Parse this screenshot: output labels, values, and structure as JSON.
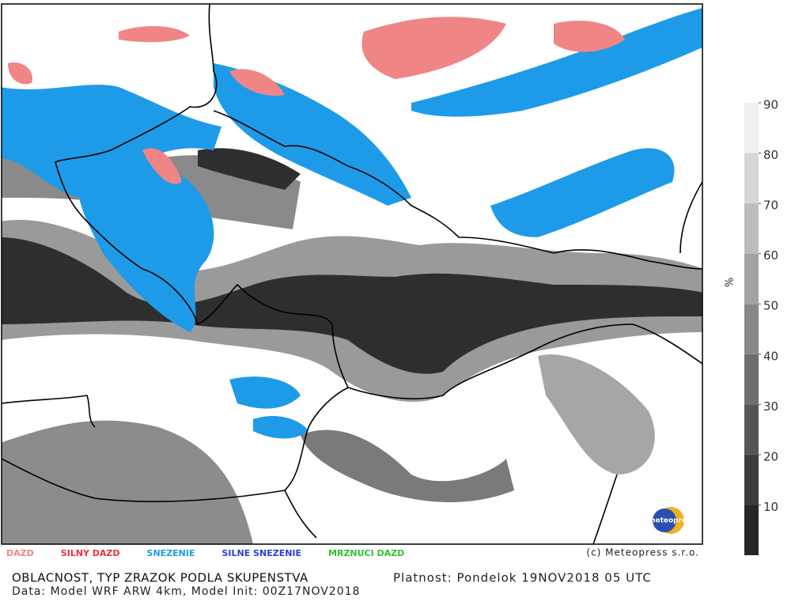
{
  "legend": [
    {
      "label": "DAZD",
      "color": "#f08585"
    },
    {
      "label": "SILNY DAZD",
      "color": "#e8323c"
    },
    {
      "label": "SNEZENIE",
      "color": "#1e9be8"
    },
    {
      "label": "SILNE SNEZENIE",
      "color": "#2a3fd0"
    },
    {
      "label": "MRZNUCI DAZD",
      "color": "#2fc12f"
    }
  ],
  "copyright": "(c) Meteopress s.r.o.",
  "logo": "meteopress",
  "title": "OBLACNOST, TYP ZRAZOK PODLA SKUPENSTVA",
  "validity": "Platnost: Pondelok 19NOV2018 05 UTC",
  "source": "Data: Model WRF ARW 4km, Model Init: 00Z17NOV2018",
  "colorbar": {
    "unit": "%",
    "lim": [
      0,
      90
    ],
    "ticks": [
      10,
      20,
      30,
      40,
      50,
      60,
      70,
      80,
      90
    ],
    "colors": [
      "#262626",
      "#3c3c3c",
      "#555555",
      "#6e6e6e",
      "#888888",
      "#a2a2a2",
      "#bcbcbc",
      "#d6d6d6",
      "#f0f0f0"
    ]
  }
}
